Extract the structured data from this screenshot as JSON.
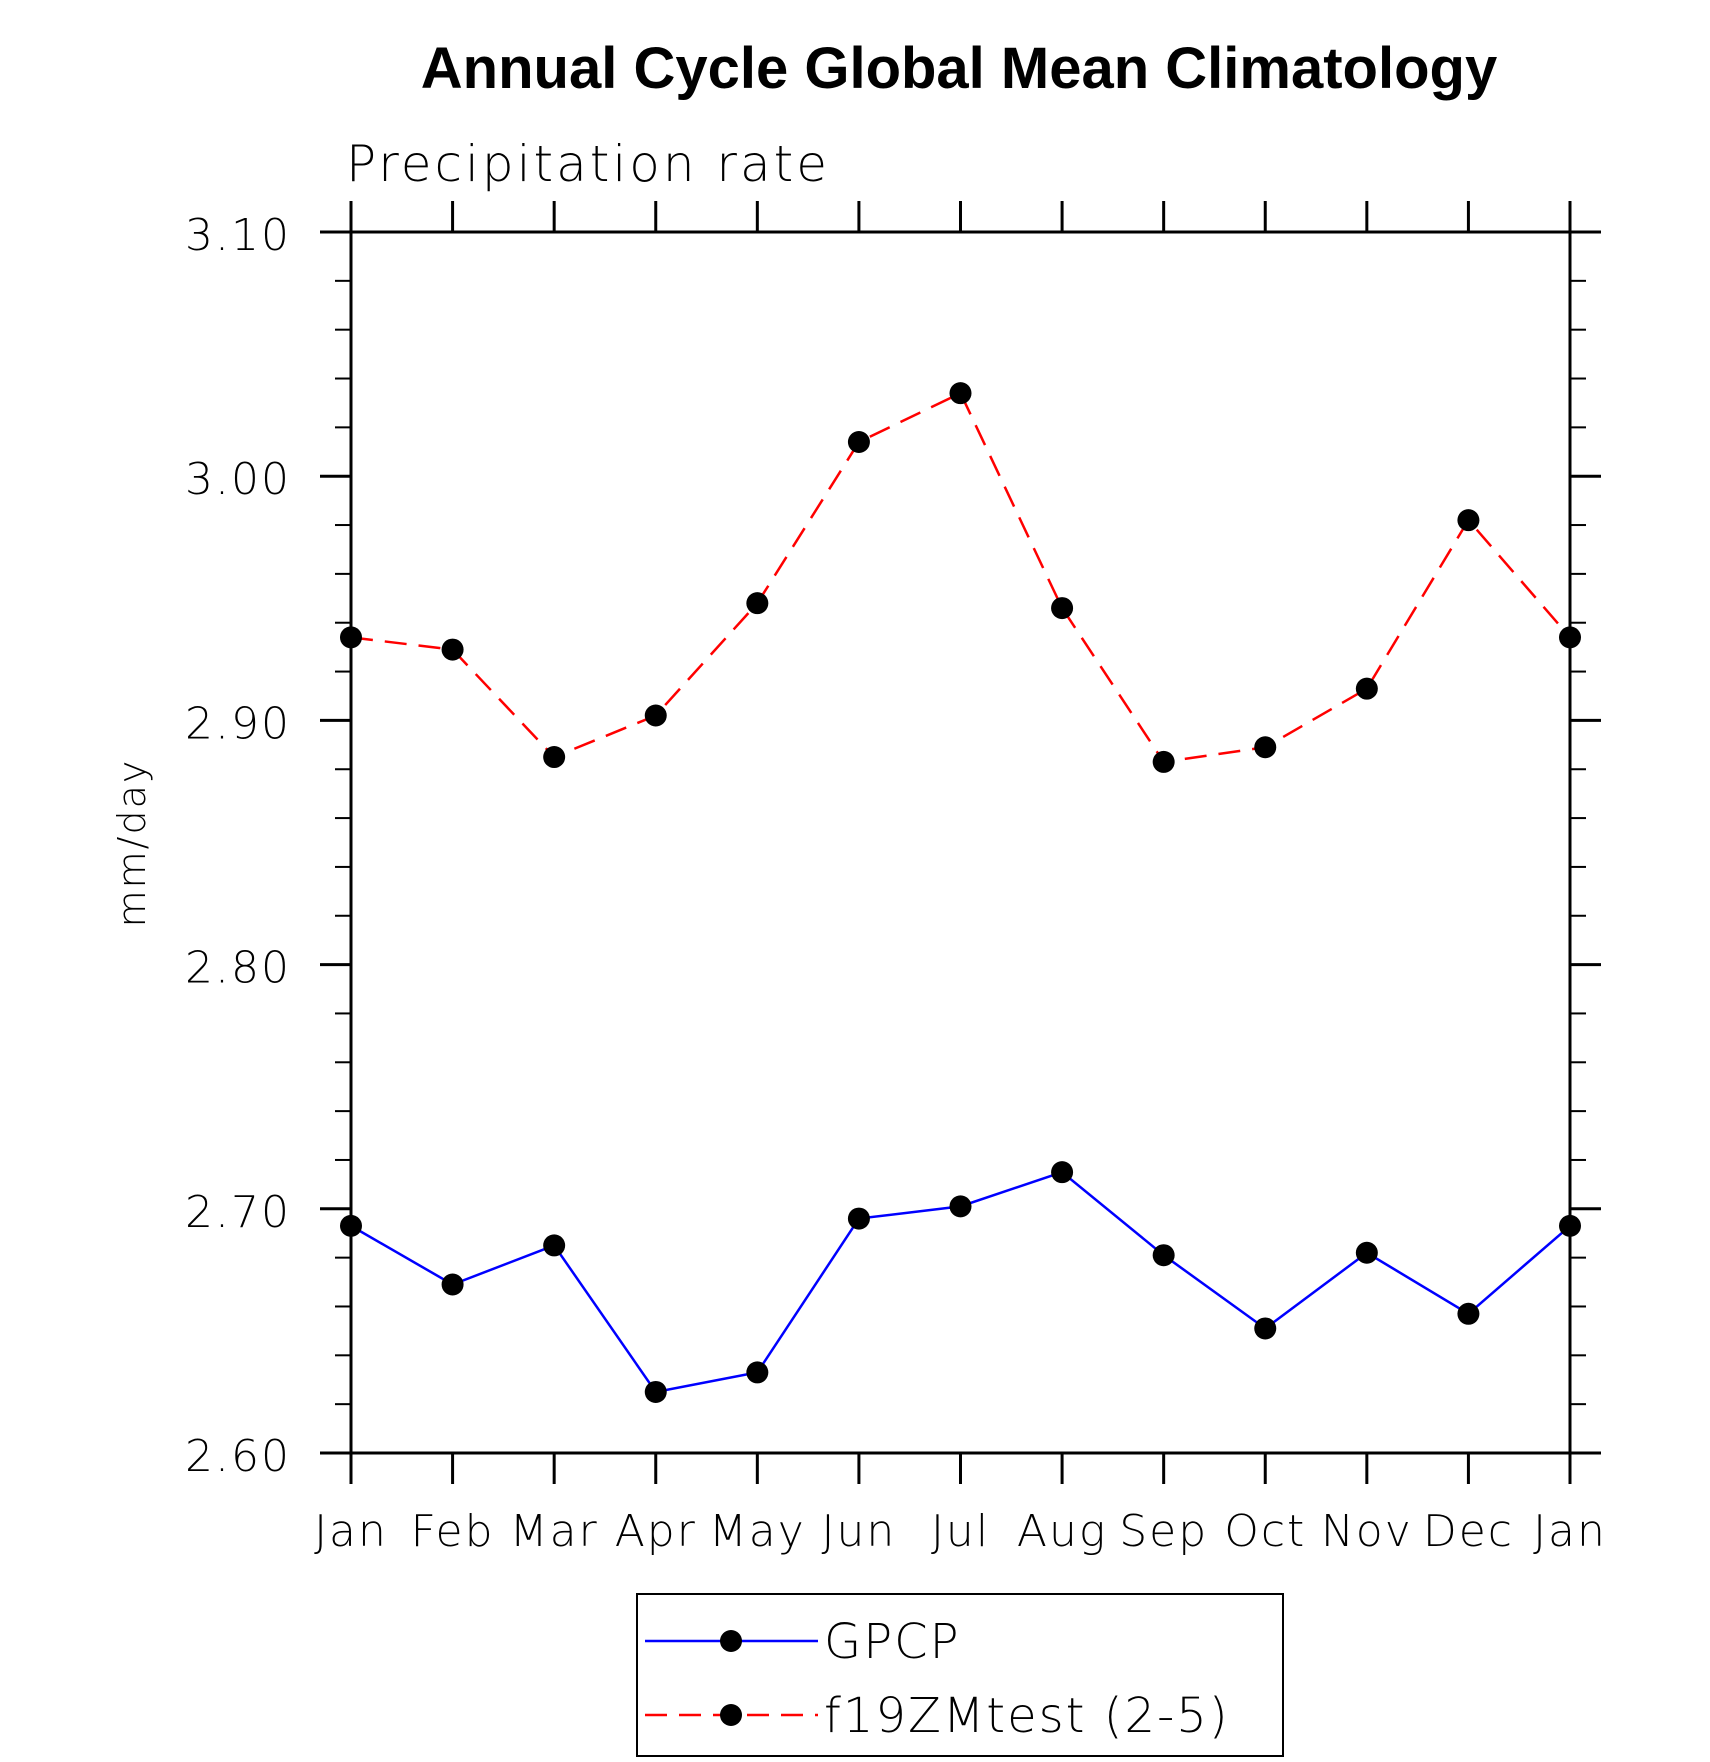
{
  "chart_data": {
    "type": "line",
    "title": "Annual Cycle Global Mean Climatology",
    "subtitle": "Precipitation rate",
    "ylabel": "mm/day",
    "xlabel": "",
    "categories": [
      "Jan",
      "Feb",
      "Mar",
      "Apr",
      "May",
      "Jun",
      "Jul",
      "Aug",
      "Sep",
      "Oct",
      "Nov",
      "Dec",
      "Jan"
    ],
    "ylim": [
      2.6,
      3.1
    ],
    "yticks": [
      "2.60",
      "2.70",
      "2.80",
      "2.90",
      "3.00",
      "3.10"
    ],
    "grid": false,
    "legend_position": "bottom-center",
    "series": [
      {
        "name": "GPCP",
        "color": "#0000ff",
        "dash": "solid",
        "marker": "filled-circle",
        "values": [
          2.693,
          2.669,
          2.685,
          2.625,
          2.633,
          2.696,
          2.701,
          2.715,
          2.681,
          2.651,
          2.682,
          2.657,
          2.693
        ]
      },
      {
        "name": "f19ZMtest (2-5)",
        "color": "#ff0000",
        "dash": "dashed",
        "marker": "filled-circle",
        "values": [
          2.934,
          2.929,
          2.885,
          2.902,
          2.948,
          3.014,
          3.034,
          2.946,
          2.883,
          2.889,
          2.913,
          2.982,
          2.934
        ]
      }
    ]
  }
}
